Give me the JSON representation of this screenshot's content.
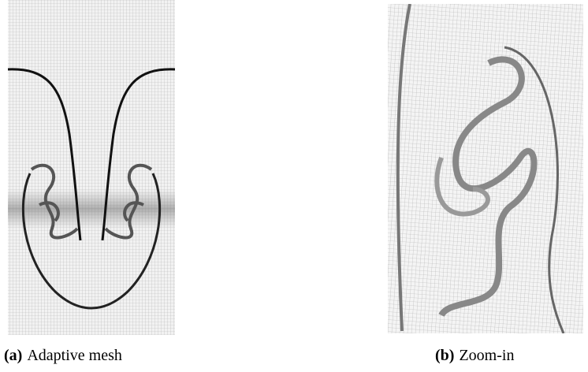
{
  "figures": [
    {
      "label": "(a)",
      "caption": "Adaptive mesh"
    },
    {
      "label": "(b)",
      "caption": "Zoom-in"
    }
  ]
}
